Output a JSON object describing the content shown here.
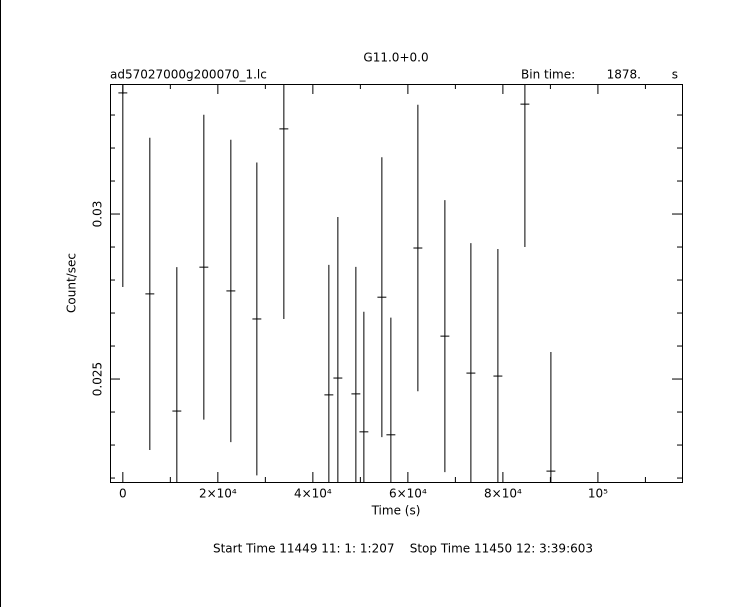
{
  "chart_data": {
    "type": "errorbar",
    "title": "G11.0+0.0",
    "file_label": "ad57027000g200070_1.lc",
    "bin_time_label": "Bin time:",
    "bin_time": "1878.",
    "bin_time_unit": "s",
    "x_label": "Time (s)",
    "y_label": "Count/sec",
    "footer": "Start Time 11449 11: 1: 1:207    Stop Time 11450 12: 3:39:603",
    "color": "#000000",
    "x": [
      0,
      5684,
      11368,
      17053,
      22737,
      28211,
      33895,
      43368,
      45263,
      49053,
      50737,
      54526,
      56421,
      62105,
      67789,
      73263,
      78947,
      84632,
      90105
    ],
    "values": [
      0.03367,
      0.02758,
      0.02403,
      0.02839,
      0.02767,
      0.02682,
      0.03258,
      0.02452,
      0.02503,
      0.02455,
      0.0234,
      0.02748,
      0.02331,
      0.02897,
      0.0263,
      0.02518,
      0.02509,
      0.03333,
      0.02221
    ],
    "errors": [
      0.00588,
      0.00473,
      0.00436,
      0.00462,
      0.00458,
      0.00474,
      0.00576,
      0.00394,
      0.00488,
      0.00385,
      0.00364,
      0.00424,
      0.00355,
      0.00434,
      0.00412,
      0.00394,
      0.00385,
      0.00433,
      0.00361
    ],
    "xlim": [
      -2700,
      117700
    ],
    "ylim": [
      0.02188,
      0.03394
    ],
    "xticks": [
      0,
      {
        "value": 20000,
        "label": "2×10⁴"
      },
      {
        "value": 40000,
        "label": "4×10⁴"
      },
      {
        "value": 60000,
        "label": "6×10⁴"
      },
      {
        "value": 80000,
        "label": "8×10⁴"
      },
      {
        "value": 100000,
        "label": "10⁵"
      }
    ],
    "xminorticks": [
      10000,
      30000,
      50000,
      70000,
      90000,
      110000
    ],
    "yticks": [
      0.025,
      0.03
    ],
    "yminorticks": [
      0.022,
      0.023,
      0.024,
      0.026,
      0.027,
      0.028,
      0.029,
      0.031,
      0.032,
      0.033
    ]
  }
}
